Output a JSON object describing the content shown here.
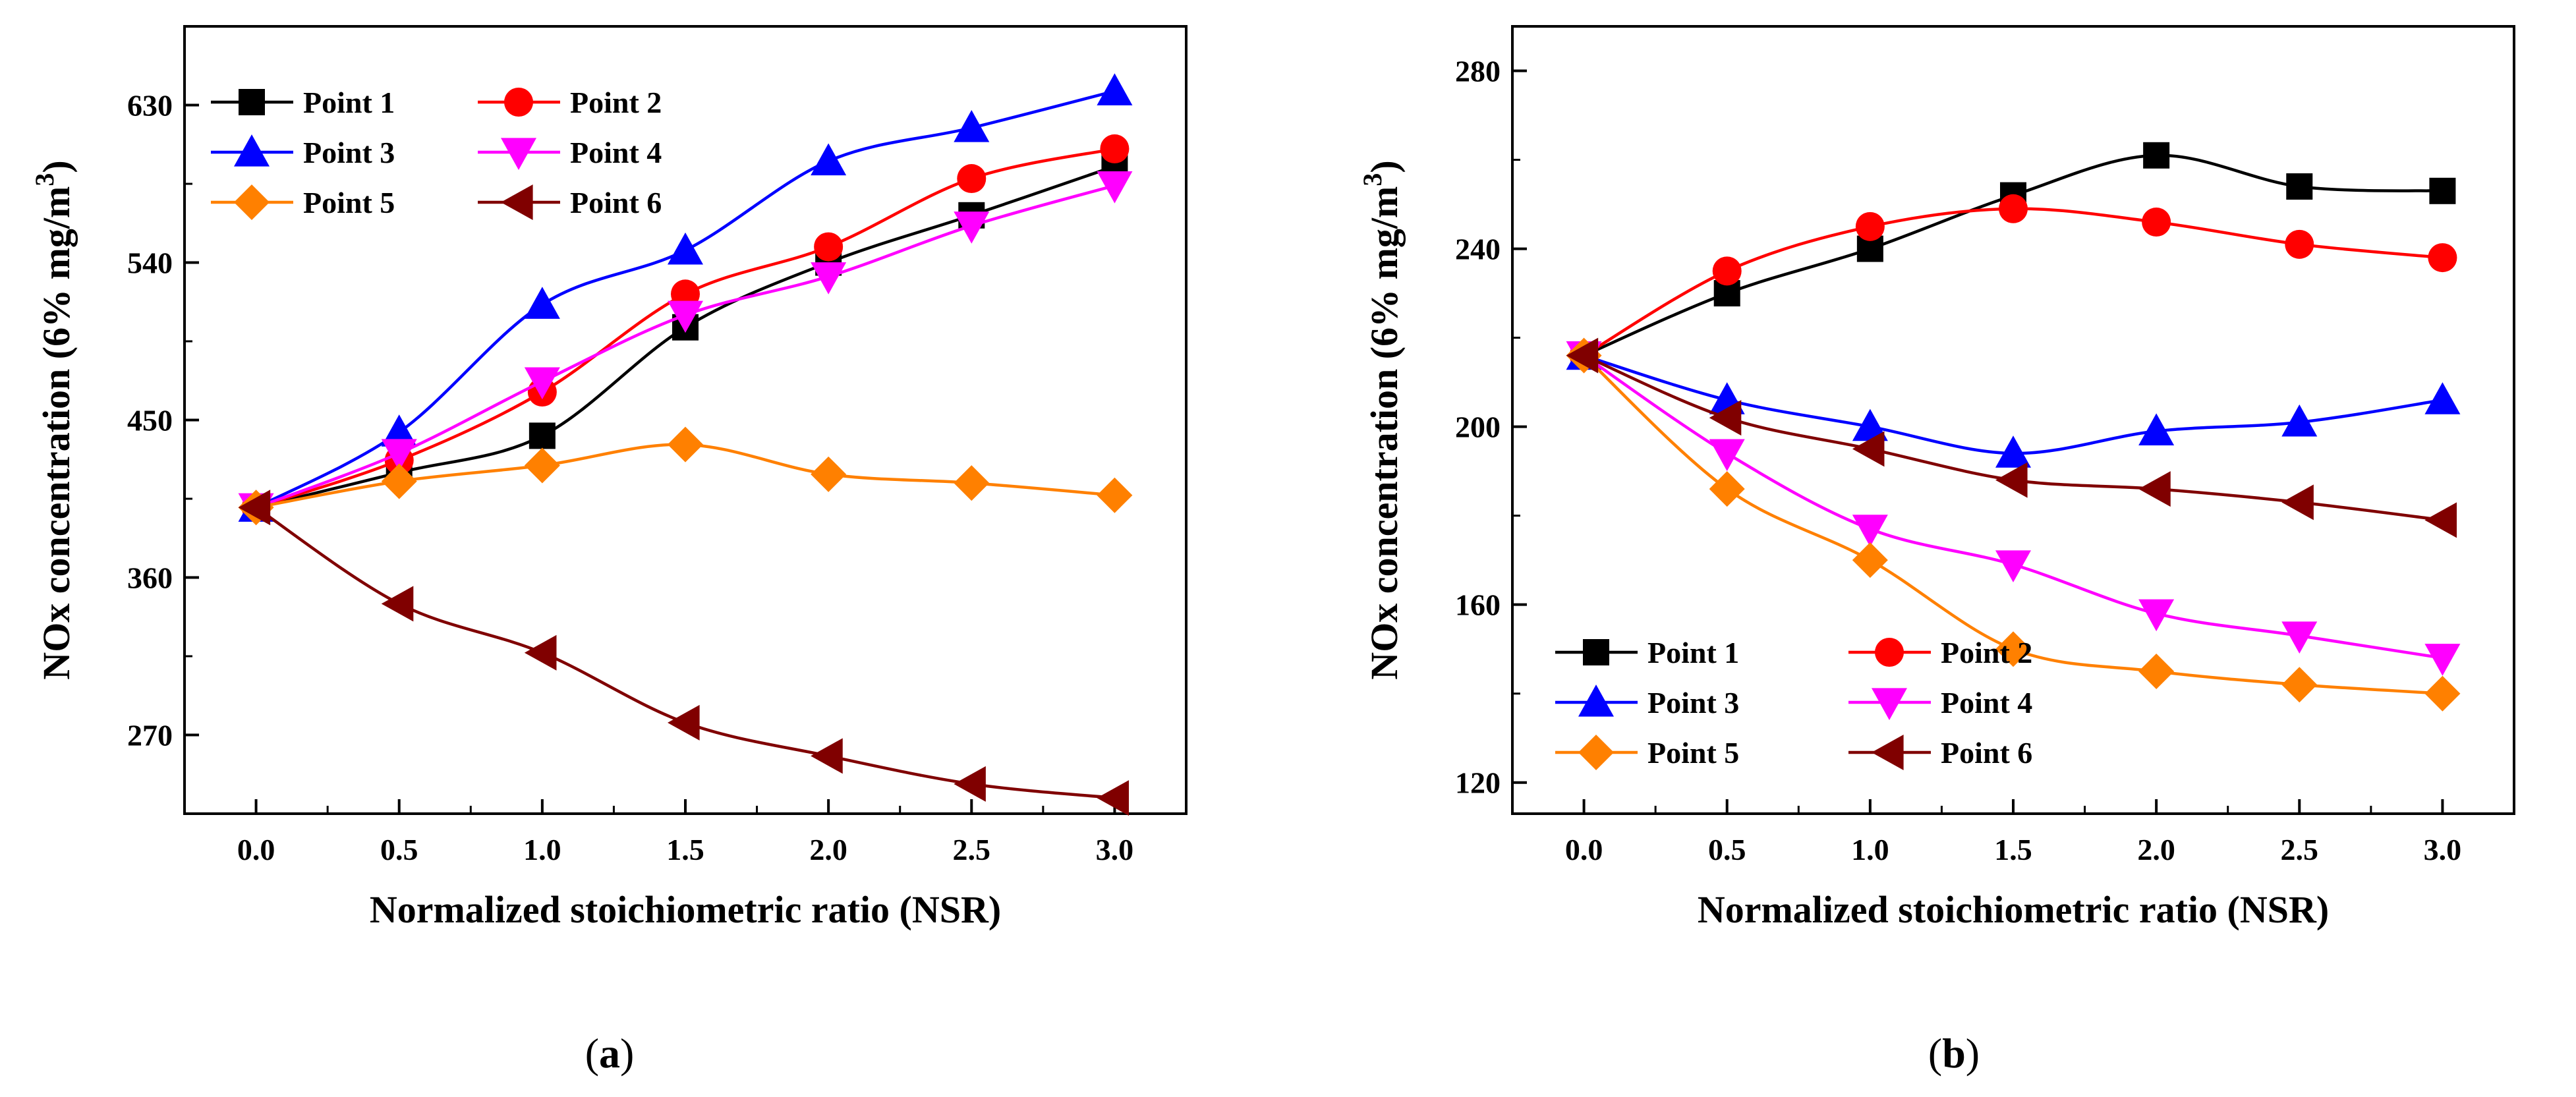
{
  "chart_data": [
    {
      "type": "line",
      "panel_label": "a",
      "xlabel": "Normalized stoichiometric ratio (NSR)",
      "ylabel": "NOx concentration (6% mg/m",
      "ylabel_superscript": "3",
      "ylabel_suffix": ")",
      "xlim": [
        -0.25,
        3.25
      ],
      "ylim": [
        225,
        675
      ],
      "xticks": [
        0.0,
        0.5,
        1.0,
        1.5,
        2.0,
        2.5,
        3.0
      ],
      "xtick_labels": [
        "0.0",
        "0.5",
        "1.0",
        "1.5",
        "2.0",
        "2.5",
        "3.0"
      ],
      "yticks": [
        270,
        360,
        450,
        540,
        630
      ],
      "ytick_labels": [
        "270",
        "360",
        "450",
        "540",
        "630"
      ],
      "legend_position": "top-left",
      "legend_columns": 2,
      "x": [
        0.0,
        0.5,
        1.0,
        1.5,
        2.0,
        2.5,
        3.0
      ],
      "series": [
        {
          "name": "Point 1",
          "color": "#000000",
          "marker": "square",
          "values": [
            400,
            420,
            441,
            503,
            540,
            567,
            595
          ]
        },
        {
          "name": "Point 2",
          "color": "#ff0000",
          "marker": "circle",
          "values": [
            400,
            427,
            466,
            522,
            549,
            588,
            605
          ]
        },
        {
          "name": "Point 3",
          "color": "#0000ff",
          "marker": "triangle-up",
          "values": [
            400,
            443,
            516,
            547,
            598,
            617,
            638
          ]
        },
        {
          "name": "Point 4",
          "color": "#ff00ff",
          "marker": "triangle-down",
          "values": [
            400,
            431,
            472,
            510,
            532,
            561,
            584
          ]
        },
        {
          "name": "Point 5",
          "color": "#ff8000",
          "marker": "diamond",
          "values": [
            400,
            415,
            424,
            436,
            419,
            414,
            407
          ]
        },
        {
          "name": "Point 6",
          "color": "#800000",
          "marker": "triangle-left",
          "values": [
            400,
            345,
            317,
            277,
            258,
            242,
            234
          ]
        }
      ]
    },
    {
      "type": "line",
      "panel_label": "b",
      "xlabel": "Normalized stoichiometric ratio (NSR)",
      "ylabel": "NOx concentration (6% mg/m",
      "ylabel_superscript": "3",
      "ylabel_suffix": ")",
      "xlim": [
        -0.25,
        3.25
      ],
      "ylim": [
        113,
        290
      ],
      "xticks": [
        0.0,
        0.5,
        1.0,
        1.5,
        2.0,
        2.5,
        3.0
      ],
      "xtick_labels": [
        "0.0",
        "0.5",
        "1.0",
        "1.5",
        "2.0",
        "2.5",
        "3.0"
      ],
      "yticks": [
        120,
        160,
        200,
        240,
        280
      ],
      "ytick_labels": [
        "120",
        "160",
        "200",
        "240",
        "280"
      ],
      "legend_position": "bottom-left",
      "legend_columns": 2,
      "x": [
        0.0,
        0.5,
        1.0,
        1.5,
        2.0,
        2.5,
        3.0
      ],
      "series": [
        {
          "name": "Point 1",
          "color": "#000000",
          "marker": "square",
          "values": [
            216,
            230,
            240,
            252,
            261,
            254,
            253
          ]
        },
        {
          "name": "Point 2",
          "color": "#ff0000",
          "marker": "circle",
          "values": [
            216,
            235,
            245,
            249,
            246,
            241,
            238
          ]
        },
        {
          "name": "Point 3",
          "color": "#0000ff",
          "marker": "triangle-up",
          "values": [
            216,
            206,
            200,
            194,
            199,
            201,
            206
          ]
        },
        {
          "name": "Point 4",
          "color": "#ff00ff",
          "marker": "triangle-down",
          "values": [
            216,
            194,
            177,
            169,
            158,
            153,
            148
          ]
        },
        {
          "name": "Point 5",
          "color": "#ff8000",
          "marker": "diamond",
          "values": [
            216,
            186,
            170,
            150,
            145,
            142,
            140
          ]
        },
        {
          "name": "Point 6",
          "color": "#800000",
          "marker": "triangle-left",
          "values": [
            216,
            202,
            195,
            188,
            186,
            183,
            179
          ]
        }
      ]
    }
  ]
}
